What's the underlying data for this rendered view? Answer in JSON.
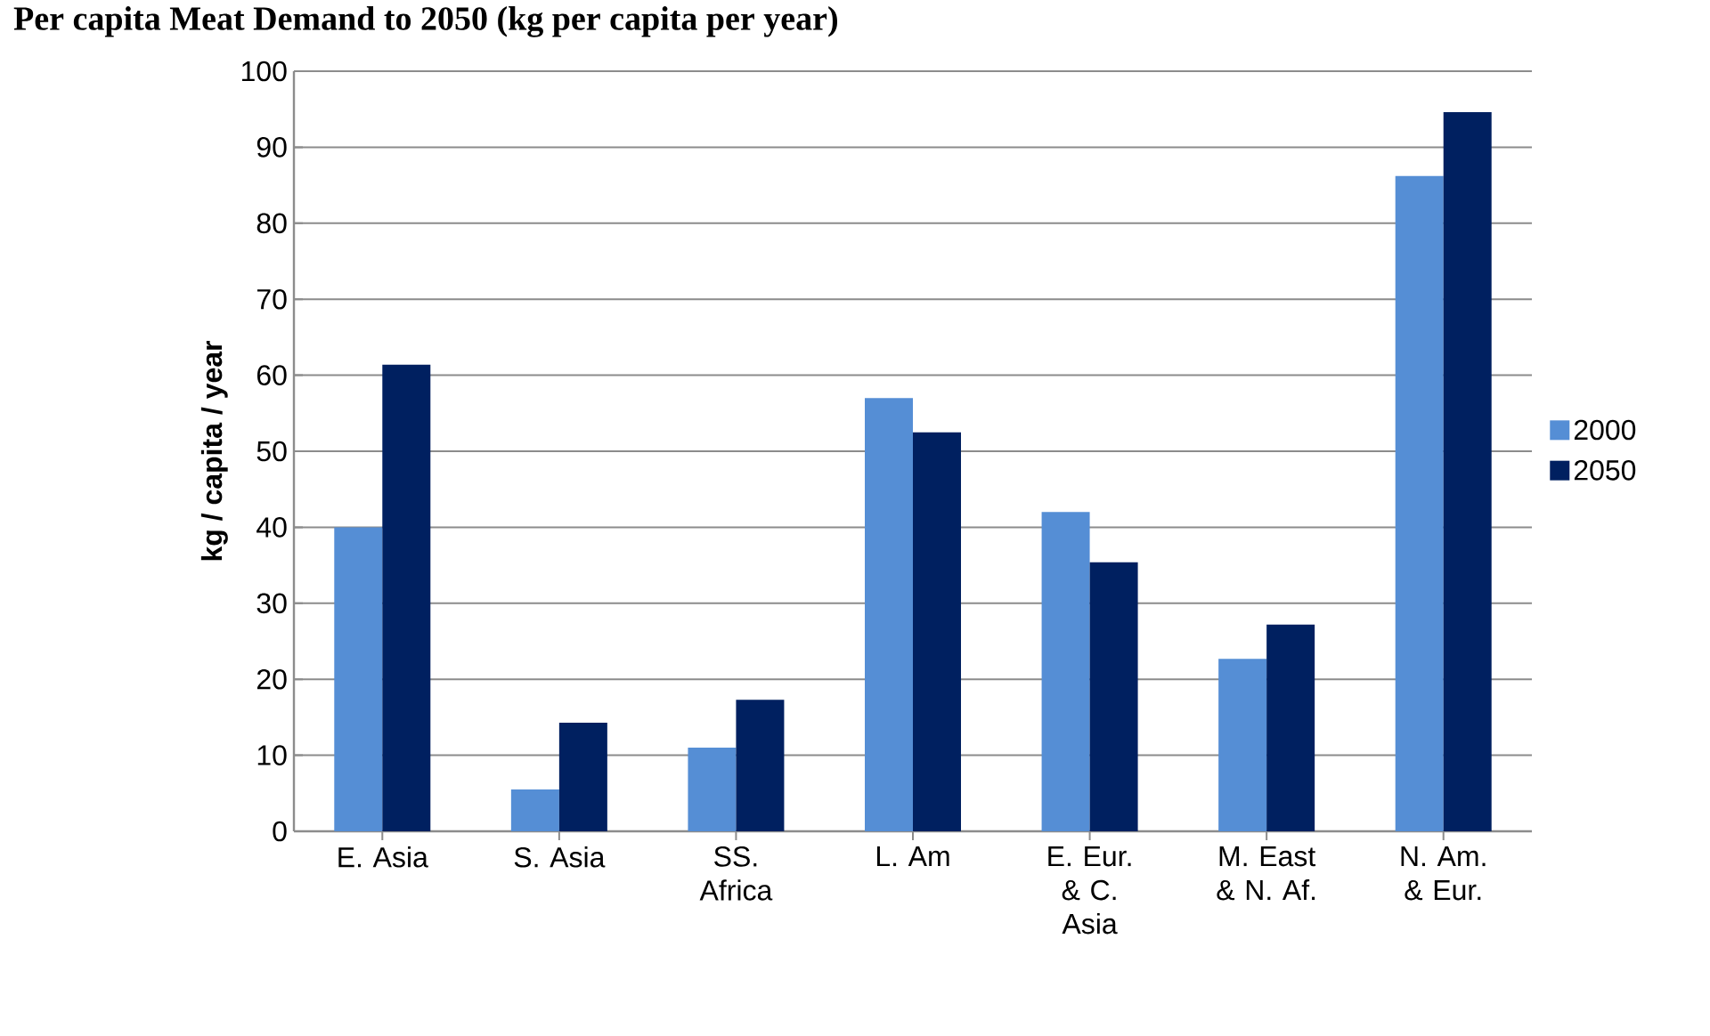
{
  "chart_data": {
    "type": "bar",
    "title": "Per capita Meat Demand to 2050 (kg per capita per year)",
    "ylabel": "kg / capita / year",
    "categories": [
      "E. Asia",
      "S. Asia",
      "SS. Africa",
      "L. Am",
      "E. Eur. & C. Asia",
      "M. East & N. Af.",
      "N. Am. & Eur."
    ],
    "series": [
      {
        "name": "2000",
        "color": "#558ed5",
        "values": [
          40,
          5.5,
          11,
          57,
          42,
          22.7,
          86.2
        ]
      },
      {
        "name": "2050",
        "color": "#002060",
        "values": [
          61.4,
          14.3,
          17.3,
          52.5,
          35.4,
          27.2,
          94.6
        ]
      }
    ],
    "ylim": [
      0,
      100
    ],
    "yticks": [
      0,
      10,
      20,
      30,
      40,
      50,
      60,
      70,
      80,
      90,
      100
    ],
    "grid": "y",
    "legend": "right"
  }
}
